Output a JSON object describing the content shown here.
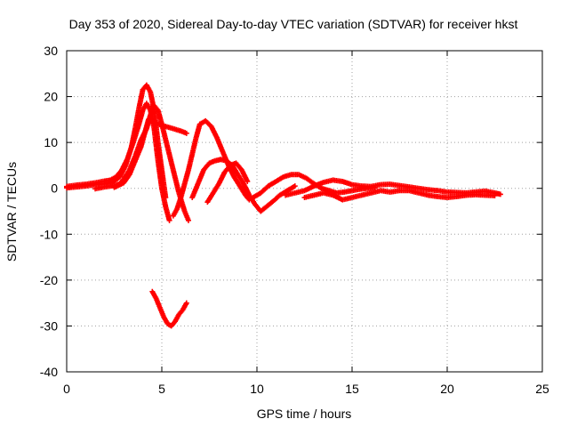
{
  "chart_data": {
    "type": "scatter",
    "title": "Day 353 of 2020, Sidereal Day-to-day VTEC variation (SDTVAR) for receiver hkst",
    "xlabel": "GPS time / hours",
    "ylabel": "SDTVAR / TECUs",
    "xlim": [
      0,
      25
    ],
    "ylim": [
      -40,
      30
    ],
    "xticks": [
      0,
      5,
      10,
      15,
      20,
      25
    ],
    "yticks": [
      -40,
      -30,
      -20,
      -10,
      0,
      10,
      20,
      30
    ],
    "xtick_labels": [
      "0",
      "5",
      "10",
      "15",
      "20",
      "25"
    ],
    "ytick_labels": [
      "-40",
      "-30",
      "-20",
      "-10",
      "0",
      "10",
      "20",
      "30"
    ],
    "grid": true,
    "marker": "plus",
    "color": "#ff0000",
    "series": [
      {
        "name": "arc-1",
        "points": [
          [
            0.0,
            0.4
          ],
          [
            0.5,
            0.7
          ],
          [
            1.0,
            0.9
          ],
          [
            1.5,
            1.2
          ],
          [
            2.0,
            1.6
          ],
          [
            2.3,
            1.8
          ],
          [
            2.6,
            2.5
          ],
          [
            2.9,
            4.0
          ],
          [
            3.2,
            6.5
          ],
          [
            3.5,
            10.0
          ],
          [
            3.8,
            14.0
          ],
          [
            4.0,
            17.0
          ],
          [
            4.2,
            18.5
          ],
          [
            4.4,
            17.0
          ],
          [
            4.6,
            13.0
          ],
          [
            4.8,
            6.0
          ],
          [
            5.0,
            0.0
          ],
          [
            5.2,
            -4.0
          ],
          [
            5.4,
            -7.0
          ]
        ]
      },
      {
        "name": "arc-2",
        "points": [
          [
            0.0,
            0.1
          ],
          [
            0.5,
            0.3
          ],
          [
            1.0,
            0.5
          ],
          [
            1.5,
            0.8
          ],
          [
            2.0,
            1.0
          ],
          [
            2.4,
            1.3
          ],
          [
            2.8,
            2.5
          ],
          [
            3.1,
            5.0
          ],
          [
            3.4,
            9.0
          ],
          [
            3.6,
            13.0
          ],
          [
            3.8,
            17.5
          ],
          [
            4.0,
            21.5
          ],
          [
            4.2,
            22.5
          ],
          [
            4.4,
            21.0
          ],
          [
            4.6,
            17.0
          ],
          [
            4.8,
            10.0
          ],
          [
            5.0,
            4.0
          ],
          [
            5.2,
            -2.0
          ]
        ]
      },
      {
        "name": "arc-3",
        "points": [
          [
            1.5,
            -0.1
          ],
          [
            2.0,
            0.3
          ],
          [
            2.5,
            0.6
          ],
          [
            2.8,
            1.0
          ],
          [
            3.0,
            2.0
          ],
          [
            3.3,
            4.0
          ],
          [
            3.6,
            7.0
          ],
          [
            3.9,
            10.5
          ],
          [
            4.2,
            13.0
          ],
          [
            4.4,
            16.0
          ],
          [
            4.6,
            18.0
          ],
          [
            4.8,
            17.0
          ],
          [
            5.0,
            14.0
          ],
          [
            5.3,
            9.0
          ],
          [
            5.6,
            4.0
          ],
          [
            5.9,
            -1.0
          ],
          [
            6.2,
            -5.0
          ],
          [
            6.4,
            -7.0
          ]
        ]
      },
      {
        "name": "arc-4",
        "points": [
          [
            2.5,
            0.2
          ],
          [
            3.0,
            1.2
          ],
          [
            3.3,
            3.0
          ],
          [
            3.6,
            6.0
          ],
          [
            3.9,
            9.0
          ],
          [
            4.1,
            12.0
          ],
          [
            4.3,
            15.0
          ],
          [
            4.5,
            14.5
          ],
          [
            4.8,
            14.0
          ],
          [
            5.2,
            13.5
          ],
          [
            5.6,
            13.0
          ],
          [
            6.0,
            12.5
          ],
          [
            6.3,
            12.0
          ]
        ]
      },
      {
        "name": "arc-5",
        "points": [
          [
            5.6,
            -6.0
          ],
          [
            5.8,
            -4.5
          ],
          [
            6.0,
            -2.0
          ],
          [
            6.2,
            1.0
          ],
          [
            6.4,
            4.0
          ],
          [
            6.6,
            7.5
          ],
          [
            6.8,
            11.0
          ],
          [
            7.0,
            14.0
          ],
          [
            7.3,
            14.7
          ],
          [
            7.6,
            13.5
          ],
          [
            7.9,
            11.0
          ],
          [
            8.2,
            8.0
          ],
          [
            8.5,
            5.0
          ],
          [
            8.8,
            2.5
          ],
          [
            9.1,
            0.5
          ],
          [
            9.4,
            -1.5
          ],
          [
            9.6,
            -2.5
          ]
        ]
      },
      {
        "name": "arc-6",
        "points": [
          [
            6.6,
            -2.0
          ],
          [
            6.9,
            1.0
          ],
          [
            7.2,
            4.0
          ],
          [
            7.5,
            5.5
          ],
          [
            7.8,
            6.0
          ],
          [
            8.1,
            6.3
          ],
          [
            8.4,
            6.0
          ],
          [
            8.7,
            5.0
          ],
          [
            9.0,
            3.0
          ],
          [
            9.3,
            1.0
          ],
          [
            9.6,
            -1.5
          ],
          [
            9.9,
            -3.5
          ],
          [
            10.2,
            -5.0
          ],
          [
            10.5,
            -4.0
          ],
          [
            10.8,
            -3.0
          ],
          [
            11.2,
            -1.5
          ],
          [
            11.6,
            -0.5
          ],
          [
            12.0,
            0.5
          ]
        ]
      },
      {
        "name": "arc-7",
        "points": [
          [
            7.4,
            -3.0
          ],
          [
            7.7,
            -1.0
          ],
          [
            8.0,
            1.0
          ],
          [
            8.3,
            3.5
          ],
          [
            8.6,
            5.0
          ],
          [
            8.9,
            5.5
          ],
          [
            9.2,
            4.0
          ],
          [
            9.5,
            1.5
          ]
        ]
      },
      {
        "name": "arc-8",
        "points": [
          [
            9.8,
            -2.0
          ],
          [
            10.2,
            -1.0
          ],
          [
            10.6,
            0.5
          ],
          [
            11.0,
            1.5
          ],
          [
            11.4,
            2.5
          ],
          [
            11.8,
            3.0
          ],
          [
            12.2,
            3.0
          ],
          [
            12.6,
            2.2
          ],
          [
            13.0,
            1.0
          ],
          [
            13.4,
            0.0
          ],
          [
            13.8,
            -0.5
          ],
          [
            14.2,
            -1.0
          ],
          [
            14.6,
            -0.8
          ],
          [
            15.0,
            -0.5
          ],
          [
            15.4,
            -0.2
          ],
          [
            15.8,
            0.0
          ],
          [
            16.2,
            0.1
          ]
        ]
      },
      {
        "name": "arc-9",
        "points": [
          [
            11.5,
            -1.5
          ],
          [
            12.0,
            -1.0
          ],
          [
            12.5,
            -0.5
          ],
          [
            13.0,
            0.5
          ],
          [
            13.5,
            1.3
          ],
          [
            14.0,
            1.8
          ],
          [
            14.5,
            1.5
          ],
          [
            15.0,
            0.8
          ],
          [
            15.5,
            0.5
          ],
          [
            16.0,
            0.4
          ],
          [
            16.5,
            0.8
          ],
          [
            17.0,
            0.9
          ],
          [
            17.5,
            0.6
          ],
          [
            18.0,
            0.3
          ],
          [
            18.5,
            0.0
          ],
          [
            19.0,
            -0.3
          ],
          [
            19.5,
            -0.5
          ],
          [
            20.0,
            -0.8
          ],
          [
            20.5,
            -0.9
          ],
          [
            21.0,
            -1.0
          ],
          [
            21.5,
            -0.8
          ],
          [
            22.0,
            -0.6
          ],
          [
            22.5,
            -1.0
          ],
          [
            22.8,
            -1.3
          ]
        ]
      },
      {
        "name": "arc-10",
        "points": [
          [
            12.5,
            -2.0
          ],
          [
            13.0,
            -1.5
          ],
          [
            13.5,
            -1.0
          ],
          [
            14.0,
            -1.5
          ],
          [
            14.5,
            -2.5
          ],
          [
            15.0,
            -2.0
          ],
          [
            15.5,
            -1.5
          ],
          [
            16.0,
            -1.0
          ],
          [
            16.5,
            -0.5
          ],
          [
            17.0,
            -0.8
          ],
          [
            17.5,
            -0.5
          ],
          [
            18.0,
            -0.5
          ],
          [
            18.5,
            -1.0
          ],
          [
            19.0,
            -1.5
          ],
          [
            19.5,
            -1.8
          ],
          [
            20.0,
            -2.0
          ],
          [
            20.5,
            -1.8
          ],
          [
            21.0,
            -1.5
          ],
          [
            21.5,
            -1.4
          ],
          [
            22.0,
            -1.5
          ],
          [
            22.5,
            -1.6
          ]
        ]
      },
      {
        "name": "arc-11",
        "points": [
          [
            4.5,
            -22.5
          ],
          [
            4.7,
            -24.0
          ],
          [
            4.9,
            -26.0
          ],
          [
            5.1,
            -28.0
          ],
          [
            5.3,
            -29.5
          ],
          [
            5.5,
            -30.0
          ],
          [
            5.7,
            -29.0
          ],
          [
            5.9,
            -27.5
          ],
          [
            6.1,
            -26.5
          ],
          [
            6.3,
            -25.0
          ]
        ]
      }
    ]
  }
}
